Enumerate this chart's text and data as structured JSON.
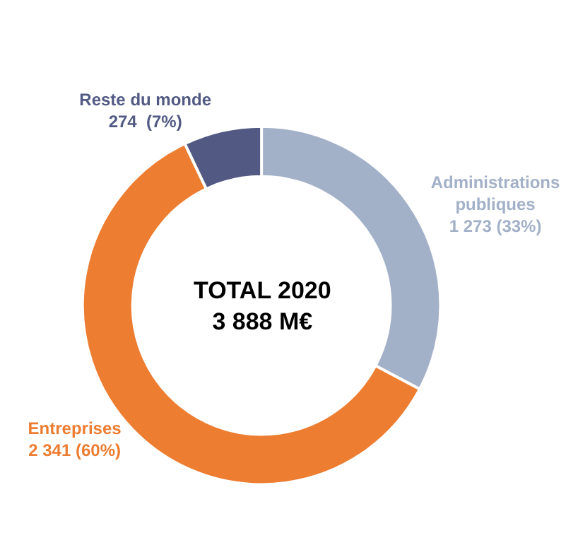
{
  "chart_data": {
    "type": "donut",
    "categories": [
      "Administrations publiques",
      "Entreprises",
      "Reste du monde"
    ],
    "values": [
      1273,
      2341,
      274
    ],
    "colors": [
      "#a3b1c8",
      "#ed7d31",
      "#525a84"
    ],
    "value_labels": [
      "1 273 (33%)",
      "2 341 (60%)",
      "274  (7%)"
    ],
    "annotations": [
      "TOTAL 2020\n3 888 M€"
    ],
    "legend": false
  }
}
